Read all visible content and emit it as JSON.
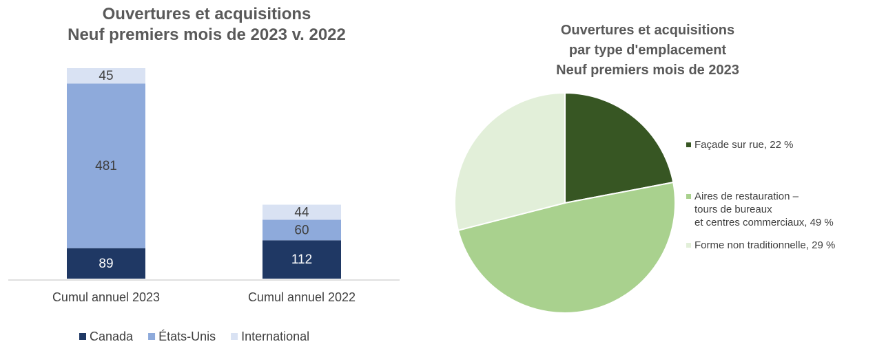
{
  "chart_data": [
    {
      "type": "stacked_bar",
      "title": "Ouvertures et acquisitions\nNeuf premiers mois de 2023 v. 2022",
      "categories": [
        "Cumul annuel 2023",
        "Cumul annuel 2022"
      ],
      "series": [
        {
          "name": "Canada",
          "color": "#1f3864",
          "values": [
            89,
            112
          ]
        },
        {
          "name": "États-Unis",
          "color": "#8eaadb",
          "values": [
            481,
            60
          ]
        },
        {
          "name": "International",
          "color": "#d9e2f3",
          "values": [
            45,
            44
          ]
        }
      ],
      "legend": "bottom"
    },
    {
      "type": "pie",
      "title": "Ouvertures et acquisitions\npar type d'emplacement\nNeuf premiers mois de 2023",
      "categories": [
        "Façade sur rue,",
        "Aires de restauration –\ntours de bureaux\net centres commerciaux,",
        "Forme non traditionnelle,"
      ],
      "values": [
        22,
        49,
        29
      ],
      "value_labels": [
        "22 %",
        "49 %",
        "29 %"
      ],
      "colors": [
        "#375623",
        "#a9d18e",
        "#e2efd9"
      ],
      "legend": "right"
    }
  ]
}
